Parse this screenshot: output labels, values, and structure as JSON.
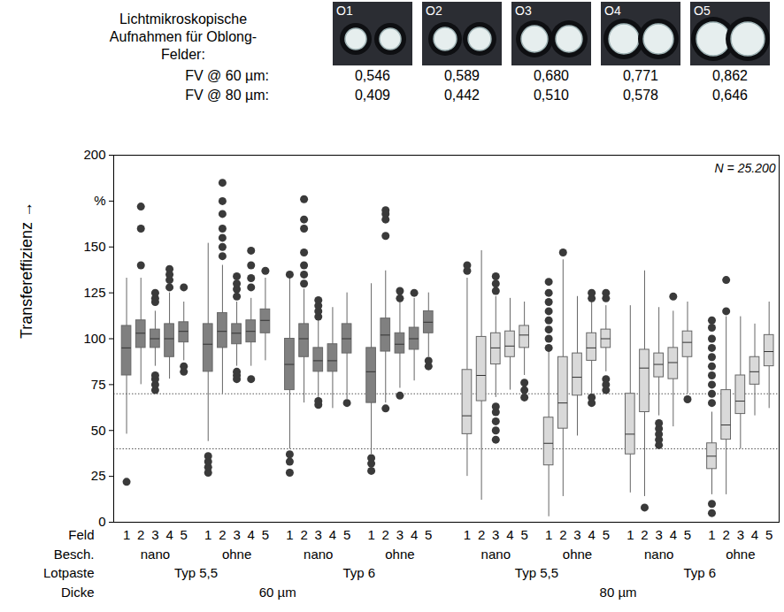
{
  "header": {
    "caption": "Lichtmikroskopische Aufnahmen für Oblong-Felder:",
    "images": [
      "O1",
      "O2",
      "O3",
      "O4",
      "O5"
    ],
    "rows": [
      {
        "label": "FV @ 60 µm:",
        "values": [
          {
            "value": 0.546,
            "label": "0,546"
          },
          {
            "value": 0.589,
            "label": "0,589"
          },
          {
            "value": 0.68,
            "label": "0,680"
          },
          {
            "value": 0.771,
            "label": "0,771"
          },
          {
            "value": 0.862,
            "label": "0,862"
          }
        ]
      },
      {
        "label": "FV @ 80 µm:",
        "values": [
          {
            "value": 0.409,
            "label": "0,409"
          },
          {
            "value": 0.442,
            "label": "0,442"
          },
          {
            "value": 0.51,
            "label": "0,510"
          },
          {
            "value": 0.578,
            "label": "0,578"
          },
          {
            "value": 0.646,
            "label": "0,646"
          }
        ]
      }
    ]
  },
  "chart_data": {
    "type": "box",
    "ylabel": "Transfereffizienz →",
    "annotation": "N = 25.200",
    "ylim": [
      0,
      200
    ],
    "yticks": [
      0,
      25,
      50,
      75,
      100,
      125,
      150,
      {
        "value": 175,
        "label": "%"
      },
      200
    ],
    "reference_lines": [
      70,
      40
    ],
    "x_row_labels": [
      "Feld",
      "Besch.",
      "Lotpaste",
      "Dicke"
    ],
    "groups": [
      {
        "thickness": "60 µm",
        "paste": "Typ 5,5",
        "coating": "nano",
        "color": "#808080",
        "boxes": [
          {
            "field": 1,
            "min": 48,
            "q1": 80,
            "median": 95,
            "q3": 107,
            "max": 133,
            "outliers": [
              22
            ]
          },
          {
            "field": 2,
            "min": 75,
            "q1": 95,
            "median": 103,
            "q3": 110,
            "max": 133,
            "outliers": [
              140,
              160,
              172
            ]
          },
          {
            "field": 3,
            "min": 85,
            "q1": 95,
            "median": 100,
            "q3": 105,
            "max": 115,
            "outliers": [
              72,
              75,
              78,
              80,
              120,
              122,
              125
            ]
          },
          {
            "field": 4,
            "min": 78,
            "q1": 90,
            "median": 100,
            "q3": 108,
            "max": 125,
            "outliers": [
              128,
              132,
              135,
              138
            ]
          },
          {
            "field": 5,
            "min": 88,
            "q1": 98,
            "median": 104,
            "q3": 109,
            "max": 120,
            "outliers": [
              82,
              85,
              128
            ]
          }
        ]
      },
      {
        "thickness": "60 µm",
        "paste": "Typ 5,5",
        "coating": "ohne",
        "color": "#808080",
        "boxes": [
          {
            "field": 1,
            "min": 44,
            "q1": 82,
            "median": 97,
            "q3": 108,
            "max": 152,
            "outliers": [
              27,
              30,
              33,
              36
            ]
          },
          {
            "field": 2,
            "min": 70,
            "q1": 95,
            "median": 104,
            "q3": 114,
            "max": 140,
            "outliers": [
              145,
              150,
              155,
              160,
              168,
              175,
              185
            ]
          },
          {
            "field": 3,
            "min": 85,
            "q1": 97,
            "median": 103,
            "q3": 108,
            "max": 120,
            "outliers": [
              78,
              80,
              82,
              123,
              127,
              130,
              134
            ]
          },
          {
            "field": 4,
            "min": 85,
            "q1": 98,
            "median": 104,
            "q3": 110,
            "max": 122,
            "outliers": [
              78,
              128,
              133,
              140,
              148
            ]
          },
          {
            "field": 5,
            "min": 88,
            "q1": 103,
            "median": 110,
            "q3": 116,
            "max": 133,
            "outliers": [
              137
            ]
          }
        ]
      },
      {
        "thickness": "60 µm",
        "paste": "Typ 6",
        "coating": "nano",
        "color": "#808080",
        "boxes": [
          {
            "field": 1,
            "min": 40,
            "q1": 72,
            "median": 86,
            "q3": 100,
            "max": 133,
            "outliers": [
              27,
              33,
              37,
              135
            ]
          },
          {
            "field": 2,
            "min": 65,
            "q1": 90,
            "median": 100,
            "q3": 108,
            "max": 127,
            "outliers": [
              130,
              135,
              140,
              147,
              160,
              165,
              176
            ]
          },
          {
            "field": 3,
            "min": 68,
            "q1": 82,
            "median": 88,
            "q3": 95,
            "max": 110,
            "outliers": [
              64,
              66,
              112,
              115,
              118,
              121
            ]
          },
          {
            "field": 4,
            "min": 62,
            "q1": 82,
            "median": 88,
            "q3": 97,
            "max": 117,
            "outliers": []
          },
          {
            "field": 5,
            "min": 67,
            "q1": 92,
            "median": 100,
            "q3": 108,
            "max": 125,
            "outliers": [
              65
            ]
          }
        ]
      },
      {
        "thickness": "60 µm",
        "paste": "Typ 6",
        "coating": "ohne",
        "color": "#808080",
        "boxes": [
          {
            "field": 1,
            "min": 37,
            "q1": 65,
            "median": 82,
            "q3": 95,
            "max": 130,
            "outliers": [
              28,
              32,
              35
            ]
          },
          {
            "field": 2,
            "min": 65,
            "q1": 93,
            "median": 102,
            "q3": 111,
            "max": 137,
            "outliers": [
              62,
              156,
              165,
              168,
              170
            ]
          },
          {
            "field": 3,
            "min": 73,
            "q1": 92,
            "median": 97,
            "q3": 103,
            "max": 120,
            "outliers": [
              69,
              122,
              126
            ]
          },
          {
            "field": 4,
            "min": 77,
            "q1": 94,
            "median": 100,
            "q3": 106,
            "max": 122,
            "outliers": [
              125
            ]
          },
          {
            "field": 5,
            "min": 90,
            "q1": 103,
            "median": 109,
            "q3": 115,
            "max": 125,
            "outliers": [
              85,
              88
            ]
          }
        ]
      },
      {
        "thickness": "80 µm",
        "paste": "Typ 5,5",
        "coating": "nano",
        "color": "#d9d9d9",
        "boxes": [
          {
            "field": 1,
            "min": 25,
            "q1": 48,
            "median": 58,
            "q3": 83,
            "max": 133,
            "outliers": [
              137,
              140
            ]
          },
          {
            "field": 2,
            "min": 12,
            "q1": 66,
            "median": 80,
            "q3": 101,
            "max": 148,
            "outliers": []
          },
          {
            "field": 3,
            "min": 68,
            "q1": 86,
            "median": 95,
            "q3": 103,
            "max": 123,
            "outliers": [
              45,
              50,
              55,
              60,
              63,
              126,
              130,
              134
            ]
          },
          {
            "field": 4,
            "min": 72,
            "q1": 90,
            "median": 96,
            "q3": 104,
            "max": 122,
            "outliers": []
          },
          {
            "field": 5,
            "min": 80,
            "q1": 95,
            "median": 102,
            "q3": 107,
            "max": 120,
            "outliers": [
              68,
              72,
              76
            ]
          }
        ]
      },
      {
        "thickness": "80 µm",
        "paste": "Typ 5,5",
        "coating": "ohne",
        "color": "#d9d9d9",
        "boxes": [
          {
            "field": 1,
            "min": 3,
            "q1": 31,
            "median": 43,
            "q3": 57,
            "max": 93,
            "outliers": [
              95,
              100,
              105,
              110,
              115,
              120,
              125,
              131
            ]
          },
          {
            "field": 2,
            "min": 14,
            "q1": 51,
            "median": 65,
            "q3": 90,
            "max": 143,
            "outliers": [
              147
            ]
          },
          {
            "field": 3,
            "min": 47,
            "q1": 69,
            "median": 79,
            "q3": 92,
            "max": 123,
            "outliers": []
          },
          {
            "field": 4,
            "min": 70,
            "q1": 88,
            "median": 95,
            "q3": 103,
            "max": 120,
            "outliers": [
              65,
              68,
              122,
              125
            ]
          },
          {
            "field": 5,
            "min": 82,
            "q1": 95,
            "median": 100,
            "q3": 105,
            "max": 118,
            "outliers": [
              72,
              75,
              78,
              122,
              125
            ]
          }
        ]
      },
      {
        "thickness": "80 µm",
        "paste": "Typ 6",
        "coating": "nano",
        "color": "#d9d9d9",
        "boxes": [
          {
            "field": 1,
            "min": 16,
            "q1": 37,
            "median": 48,
            "q3": 70,
            "max": 118,
            "outliers": []
          },
          {
            "field": 2,
            "min": 14,
            "q1": 60,
            "median": 84,
            "q3": 94,
            "max": 137,
            "outliers": [
              8
            ]
          },
          {
            "field": 3,
            "min": 58,
            "q1": 79,
            "median": 86,
            "q3": 92,
            "max": 117,
            "outliers": [
              42,
              45,
              48,
              51,
              54
            ]
          },
          {
            "field": 4,
            "min": 52,
            "q1": 78,
            "median": 87,
            "q3": 95,
            "max": 115,
            "outliers": [
              123
            ]
          },
          {
            "field": 5,
            "min": 70,
            "q1": 90,
            "median": 98,
            "q3": 104,
            "max": 120,
            "outliers": [
              67
            ]
          }
        ]
      },
      {
        "thickness": "80 µm",
        "paste": "Typ 6",
        "coating": "ohne",
        "color": "#d9d9d9",
        "boxes": [
          {
            "field": 1,
            "min": 15,
            "q1": 29,
            "median": 36,
            "q3": 43,
            "max": 60,
            "outliers": [
              5,
              10,
              65,
              70,
              75,
              80,
              85,
              90,
              95,
              100,
              106,
              110
            ]
          },
          {
            "field": 2,
            "min": 15,
            "q1": 45,
            "median": 53,
            "q3": 72,
            "max": 112,
            "outliers": [
              115,
              132
            ]
          },
          {
            "field": 3,
            "min": 40,
            "q1": 59,
            "median": 66,
            "q3": 80,
            "max": 112,
            "outliers": []
          },
          {
            "field": 4,
            "min": 58,
            "q1": 75,
            "median": 82,
            "q3": 90,
            "max": 108,
            "outliers": []
          },
          {
            "field": 5,
            "min": 62,
            "q1": 85,
            "median": 93,
            "q3": 102,
            "max": 120,
            "outliers": []
          }
        ]
      }
    ]
  }
}
